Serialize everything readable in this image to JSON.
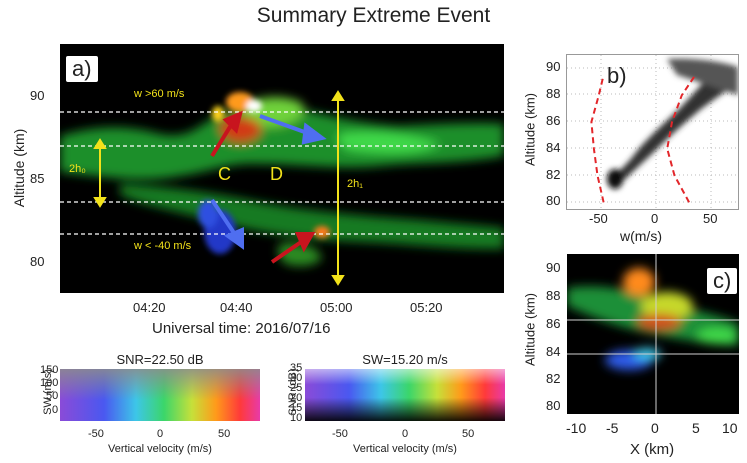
{
  "title": "Summary Extreme Event",
  "panel_a": {
    "label": "a)",
    "xlabel": "Universal time: 2016/07/16",
    "ylabel": "Altitude (km)",
    "xticks": [
      "04:20",
      "04:40",
      "05:00",
      "05:20"
    ],
    "yticks": [
      "90",
      "85",
      "80"
    ],
    "annotations": {
      "w_up": "w >60 m/s",
      "w_down": "w < -40  m/s",
      "region_c": "C",
      "region_d": "D",
      "h0": "2h₀",
      "h1": "2h₁"
    }
  },
  "panel_b": {
    "label": "b)",
    "xlabel": "w(m/s)",
    "ylabel": "Altitude (km)",
    "xticks": [
      "-50",
      "0",
      "50"
    ],
    "yticks": [
      "90",
      "88",
      "86",
      "84",
      "82",
      "80"
    ]
  },
  "panel_c": {
    "label": "c)",
    "xlabel": "X (km)",
    "ylabel": "Altitude (km)",
    "xticks": [
      "-10",
      "-5",
      "0",
      "5",
      "10"
    ],
    "yticks": [
      "90",
      "88",
      "86",
      "84",
      "82",
      "80"
    ]
  },
  "legend_left": {
    "title": "SNR=22.50 dB",
    "ylabel": "SW (m/s)",
    "yticks": [
      "150",
      "100",
      "50",
      "0"
    ],
    "xticks": [
      "-50",
      "0",
      "50"
    ],
    "xlabel": "Vertical velocity (m/s)"
  },
  "legend_right": {
    "title": "SW=15.20 m/s",
    "ylabel": "SNR (dB)",
    "yticks": [
      "35",
      "30",
      "25",
      "20",
      "15",
      "10"
    ],
    "xticks": [
      "-50",
      "0",
      "50"
    ],
    "xlabel": "Vertical velocity (m/s)"
  },
  "chart_data": [
    {
      "type": "heatmap",
      "title": "",
      "xlabel": "Universal time: 2016/07/16",
      "ylabel": "Altitude (km)",
      "x_ticks": [
        "04:20",
        "04:40",
        "05:00",
        "05:20"
      ],
      "ylim": [
        78,
        93
      ],
      "y_ticks": [
        80,
        85,
        90
      ],
      "encoding": "color = vertical velocity (hue), SW and SNR (brightness)",
      "reference_lines_altitude_km": [
        89,
        87,
        83.5,
        81.5
      ],
      "annotations": [
        "w >60 m/s",
        "w < -40  m/s",
        "C",
        "D",
        "2h₀",
        "2h₁"
      ]
    },
    {
      "type": "heatmap",
      "xlabel": "w(m/s)",
      "ylabel": "Altitude (km)",
      "xlim": [
        -60,
        80
      ],
      "ylim": [
        79.5,
        91
      ],
      "x_ticks": [
        -50,
        0,
        50
      ],
      "y_ticks": [
        80,
        82,
        84,
        86,
        88,
        90
      ],
      "envelope_left_dashed": [
        [
          -30,
          80
        ],
        [
          -35,
          82
        ],
        [
          -38,
          84
        ],
        [
          -40,
          86
        ],
        [
          -34,
          88
        ],
        [
          -30,
          89.5
        ]
      ],
      "envelope_right_dashed": [
        [
          40,
          80
        ],
        [
          28,
          82
        ],
        [
          22,
          84
        ],
        [
          26,
          86
        ],
        [
          34,
          88
        ],
        [
          45,
          89.5
        ]
      ]
    },
    {
      "type": "heatmap",
      "xlabel": "X (km)",
      "ylabel": "Altitude (km)",
      "xlim": [
        -12,
        12
      ],
      "ylim": [
        79.5,
        91
      ],
      "x_ticks": [
        -10,
        -5,
        0,
        5,
        10
      ],
      "y_ticks": [
        80,
        82,
        84,
        86,
        88,
        90
      ]
    }
  ]
}
